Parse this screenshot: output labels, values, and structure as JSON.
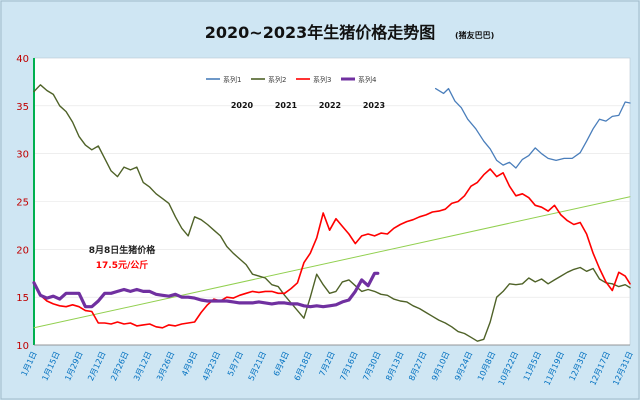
{
  "chart_data": {
    "type": "line",
    "title": "2020~2023年生猪价格走势图",
    "subtitle": "(猪友巴巴)",
    "ylim": [
      10,
      40
    ],
    "yticks": [
      "10",
      "15",
      "20",
      "25",
      "30",
      "35",
      "40"
    ],
    "xlabels": [
      "1月1日",
      "1月15日",
      "1月29日",
      "2月12日",
      "2月26日",
      "3月12日",
      "3月26日",
      "4月9日",
      "4月23日",
      "5月7日",
      "5月21日",
      "6月4日",
      "6月18日",
      "7月2日",
      "7月16日",
      "7月30日",
      "8月13日",
      "8月27日",
      "9月10日",
      "9月24日",
      "10月8日",
      "10月22日",
      "11月5日",
      "11月19日",
      "12月3日",
      "12月17日",
      "12月31日"
    ],
    "legend": {
      "placement": "top-center",
      "items": [
        {
          "name": "系列1",
          "color": "#4a7ebb"
        },
        {
          "name": "系列2",
          "color": "#4f6228"
        },
        {
          "name": "系列3",
          "color": "#ff0000"
        },
        {
          "name": "系列4",
          "color": "#7030a0"
        }
      ],
      "years": [
        "2020",
        "2021",
        "2022",
        "2023"
      ]
    },
    "annotation": {
      "line1": "8月8日生猪价格",
      "line2": "17.5元/公斤"
    },
    "series": [
      {
        "name": "系列1",
        "color": "#4a7ebb",
        "points": [
          [
            250,
            36.8
          ],
          [
            255,
            36.3
          ],
          [
            258,
            36.8
          ],
          [
            262,
            35.5
          ],
          [
            266,
            34.8
          ],
          [
            270,
            33.6
          ],
          [
            275,
            32.6
          ],
          [
            280,
            31.3
          ],
          [
            284,
            30.5
          ],
          [
            288,
            29.3
          ],
          [
            292,
            28.8
          ],
          [
            296,
            29.1
          ],
          [
            300,
            28.5
          ],
          [
            304,
            29.4
          ],
          [
            308,
            29.8
          ],
          [
            312,
            30.6
          ],
          [
            316,
            30.0
          ],
          [
            320,
            29.5
          ],
          [
            325,
            29.3
          ],
          [
            330,
            29.5
          ],
          [
            335,
            29.5
          ],
          [
            340,
            30.1
          ],
          [
            344,
            31.3
          ],
          [
            348,
            32.6
          ],
          [
            352,
            33.6
          ],
          [
            356,
            33.4
          ],
          [
            360,
            33.9
          ],
          [
            364,
            34.0
          ],
          [
            368,
            35.4
          ],
          [
            371,
            35.3
          ]
        ]
      },
      {
        "name": "系列2",
        "color": "#4f6228",
        "points": [
          [
            0,
            36.5
          ],
          [
            4,
            37.2
          ],
          [
            8,
            36.6
          ],
          [
            12,
            36.2
          ],
          [
            16,
            35.0
          ],
          [
            20,
            34.4
          ],
          [
            24,
            33.3
          ],
          [
            28,
            31.8
          ],
          [
            32,
            30.9
          ],
          [
            36,
            30.4
          ],
          [
            40,
            30.8
          ],
          [
            44,
            29.5
          ],
          [
            48,
            28.2
          ],
          [
            52,
            27.6
          ],
          [
            56,
            28.6
          ],
          [
            60,
            28.3
          ],
          [
            64,
            28.6
          ],
          [
            68,
            27.0
          ],
          [
            72,
            26.5
          ],
          [
            76,
            25.8
          ],
          [
            80,
            25.3
          ],
          [
            84,
            24.8
          ],
          [
            88,
            23.4
          ],
          [
            92,
            22.2
          ],
          [
            96,
            21.4
          ],
          [
            100,
            23.4
          ],
          [
            104,
            23.1
          ],
          [
            108,
            22.6
          ],
          [
            112,
            22.0
          ],
          [
            116,
            21.4
          ],
          [
            120,
            20.3
          ],
          [
            124,
            19.6
          ],
          [
            128,
            19.0
          ],
          [
            132,
            18.4
          ],
          [
            136,
            17.4
          ],
          [
            140,
            17.2
          ],
          [
            144,
            17.0
          ],
          [
            148,
            16.3
          ],
          [
            152,
            16.1
          ],
          [
            156,
            15.2
          ],
          [
            160,
            14.4
          ],
          [
            164,
            13.6
          ],
          [
            168,
            12.8
          ],
          [
            172,
            15.0
          ],
          [
            176,
            17.4
          ],
          [
            180,
            16.3
          ],
          [
            184,
            15.4
          ],
          [
            188,
            15.6
          ],
          [
            192,
            16.6
          ],
          [
            196,
            16.8
          ],
          [
            200,
            16.2
          ],
          [
            204,
            15.6
          ],
          [
            208,
            15.8
          ],
          [
            212,
            15.6
          ],
          [
            216,
            15.3
          ],
          [
            220,
            15.2
          ],
          [
            224,
            14.8
          ],
          [
            228,
            14.6
          ],
          [
            232,
            14.5
          ],
          [
            236,
            14.1
          ],
          [
            240,
            13.8
          ],
          [
            244,
            13.4
          ],
          [
            248,
            13.0
          ],
          [
            252,
            12.6
          ],
          [
            256,
            12.3
          ],
          [
            260,
            11.9
          ],
          [
            264,
            11.4
          ],
          [
            268,
            11.2
          ],
          [
            272,
            10.8
          ],
          [
            276,
            10.4
          ],
          [
            280,
            10.6
          ],
          [
            284,
            12.4
          ],
          [
            288,
            15.0
          ],
          [
            292,
            15.6
          ],
          [
            296,
            16.4
          ],
          [
            300,
            16.3
          ],
          [
            304,
            16.4
          ],
          [
            308,
            17.0
          ],
          [
            312,
            16.6
          ],
          [
            316,
            16.9
          ],
          [
            320,
            16.4
          ],
          [
            324,
            16.8
          ],
          [
            328,
            17.2
          ],
          [
            332,
            17.6
          ],
          [
            336,
            17.9
          ],
          [
            340,
            18.1
          ],
          [
            344,
            17.7
          ],
          [
            348,
            18.0
          ],
          [
            352,
            16.9
          ],
          [
            356,
            16.5
          ],
          [
            360,
            16.4
          ],
          [
            364,
            16.1
          ],
          [
            368,
            16.3
          ],
          [
            371,
            16.0
          ]
        ]
      },
      {
        "name": "系列3",
        "color": "#ff0000",
        "points": [
          [
            0,
            16.6
          ],
          [
            4,
            15.2
          ],
          [
            8,
            14.6
          ],
          [
            12,
            14.3
          ],
          [
            16,
            14.1
          ],
          [
            20,
            14.0
          ],
          [
            24,
            14.2
          ],
          [
            28,
            14.0
          ],
          [
            32,
            13.6
          ],
          [
            36,
            13.5
          ],
          [
            40,
            12.3
          ],
          [
            44,
            12.3
          ],
          [
            48,
            12.2
          ],
          [
            52,
            12.4
          ],
          [
            56,
            12.2
          ],
          [
            60,
            12.3
          ],
          [
            64,
            12.0
          ],
          [
            68,
            12.1
          ],
          [
            72,
            12.2
          ],
          [
            76,
            11.9
          ],
          [
            80,
            11.8
          ],
          [
            84,
            12.1
          ],
          [
            88,
            12.0
          ],
          [
            92,
            12.2
          ],
          [
            96,
            12.3
          ],
          [
            100,
            12.4
          ],
          [
            104,
            13.4
          ],
          [
            108,
            14.2
          ],
          [
            112,
            14.8
          ],
          [
            116,
            14.6
          ],
          [
            120,
            15.0
          ],
          [
            124,
            14.9
          ],
          [
            128,
            15.2
          ],
          [
            132,
            15.4
          ],
          [
            136,
            15.6
          ],
          [
            140,
            15.5
          ],
          [
            144,
            15.6
          ],
          [
            148,
            15.6
          ],
          [
            152,
            15.4
          ],
          [
            156,
            15.4
          ],
          [
            160,
            15.9
          ],
          [
            164,
            16.5
          ],
          [
            168,
            18.6
          ],
          [
            172,
            19.6
          ],
          [
            176,
            21.2
          ],
          [
            180,
            23.8
          ],
          [
            184,
            22.0
          ],
          [
            188,
            23.2
          ],
          [
            192,
            22.4
          ],
          [
            196,
            21.6
          ],
          [
            200,
            20.6
          ],
          [
            204,
            21.4
          ],
          [
            208,
            21.6
          ],
          [
            212,
            21.4
          ],
          [
            216,
            21.7
          ],
          [
            220,
            21.6
          ],
          [
            224,
            22.2
          ],
          [
            228,
            22.6
          ],
          [
            232,
            22.9
          ],
          [
            236,
            23.1
          ],
          [
            240,
            23.4
          ],
          [
            244,
            23.6
          ],
          [
            248,
            23.9
          ],
          [
            252,
            24.0
          ],
          [
            256,
            24.2
          ],
          [
            260,
            24.8
          ],
          [
            264,
            25.0
          ],
          [
            268,
            25.6
          ],
          [
            272,
            26.6
          ],
          [
            276,
            27.0
          ],
          [
            280,
            27.8
          ],
          [
            284,
            28.4
          ],
          [
            288,
            27.6
          ],
          [
            292,
            28.0
          ],
          [
            296,
            26.6
          ],
          [
            300,
            25.6
          ],
          [
            304,
            25.8
          ],
          [
            308,
            25.4
          ],
          [
            312,
            24.6
          ],
          [
            316,
            24.4
          ],
          [
            320,
            24.0
          ],
          [
            324,
            24.6
          ],
          [
            328,
            23.6
          ],
          [
            332,
            23.0
          ],
          [
            336,
            22.6
          ],
          [
            340,
            22.8
          ],
          [
            344,
            21.6
          ],
          [
            348,
            19.6
          ],
          [
            352,
            18.0
          ],
          [
            356,
            16.6
          ],
          [
            360,
            15.7
          ],
          [
            364,
            17.6
          ],
          [
            368,
            17.2
          ],
          [
            371,
            16.4
          ]
        ]
      },
      {
        "name": "系列4",
        "color": "#7030a0",
        "points": [
          [
            0,
            16.5
          ],
          [
            4,
            15.2
          ],
          [
            8,
            14.9
          ],
          [
            12,
            15.1
          ],
          [
            16,
            14.8
          ],
          [
            20,
            15.4
          ],
          [
            24,
            15.4
          ],
          [
            28,
            15.4
          ],
          [
            32,
            14.0
          ],
          [
            36,
            14.0
          ],
          [
            40,
            14.6
          ],
          [
            44,
            15.4
          ],
          [
            48,
            15.4
          ],
          [
            52,
            15.6
          ],
          [
            56,
            15.8
          ],
          [
            60,
            15.6
          ],
          [
            64,
            15.8
          ],
          [
            68,
            15.6
          ],
          [
            72,
            15.6
          ],
          [
            76,
            15.3
          ],
          [
            80,
            15.2
          ],
          [
            84,
            15.1
          ],
          [
            88,
            15.3
          ],
          [
            92,
            15.0
          ],
          [
            96,
            15.0
          ],
          [
            100,
            14.9
          ],
          [
            104,
            14.7
          ],
          [
            108,
            14.6
          ],
          [
            112,
            14.6
          ],
          [
            116,
            14.6
          ],
          [
            120,
            14.6
          ],
          [
            124,
            14.5
          ],
          [
            128,
            14.4
          ],
          [
            132,
            14.4
          ],
          [
            136,
            14.4
          ],
          [
            140,
            14.5
          ],
          [
            144,
            14.4
          ],
          [
            148,
            14.3
          ],
          [
            152,
            14.4
          ],
          [
            156,
            14.4
          ],
          [
            160,
            14.3
          ],
          [
            164,
            14.3
          ],
          [
            168,
            14.1
          ],
          [
            172,
            14.0
          ],
          [
            176,
            14.1
          ],
          [
            180,
            14.0
          ],
          [
            184,
            14.1
          ],
          [
            188,
            14.2
          ],
          [
            192,
            14.5
          ],
          [
            196,
            14.7
          ],
          [
            200,
            15.6
          ],
          [
            204,
            16.8
          ],
          [
            208,
            16.2
          ],
          [
            212,
            17.5
          ],
          [
            214,
            17.5
          ]
        ]
      },
      {
        "name": "trend",
        "color": "#92d050",
        "points": [
          [
            0,
            11.8
          ],
          [
            371,
            25.5
          ]
        ]
      }
    ]
  }
}
